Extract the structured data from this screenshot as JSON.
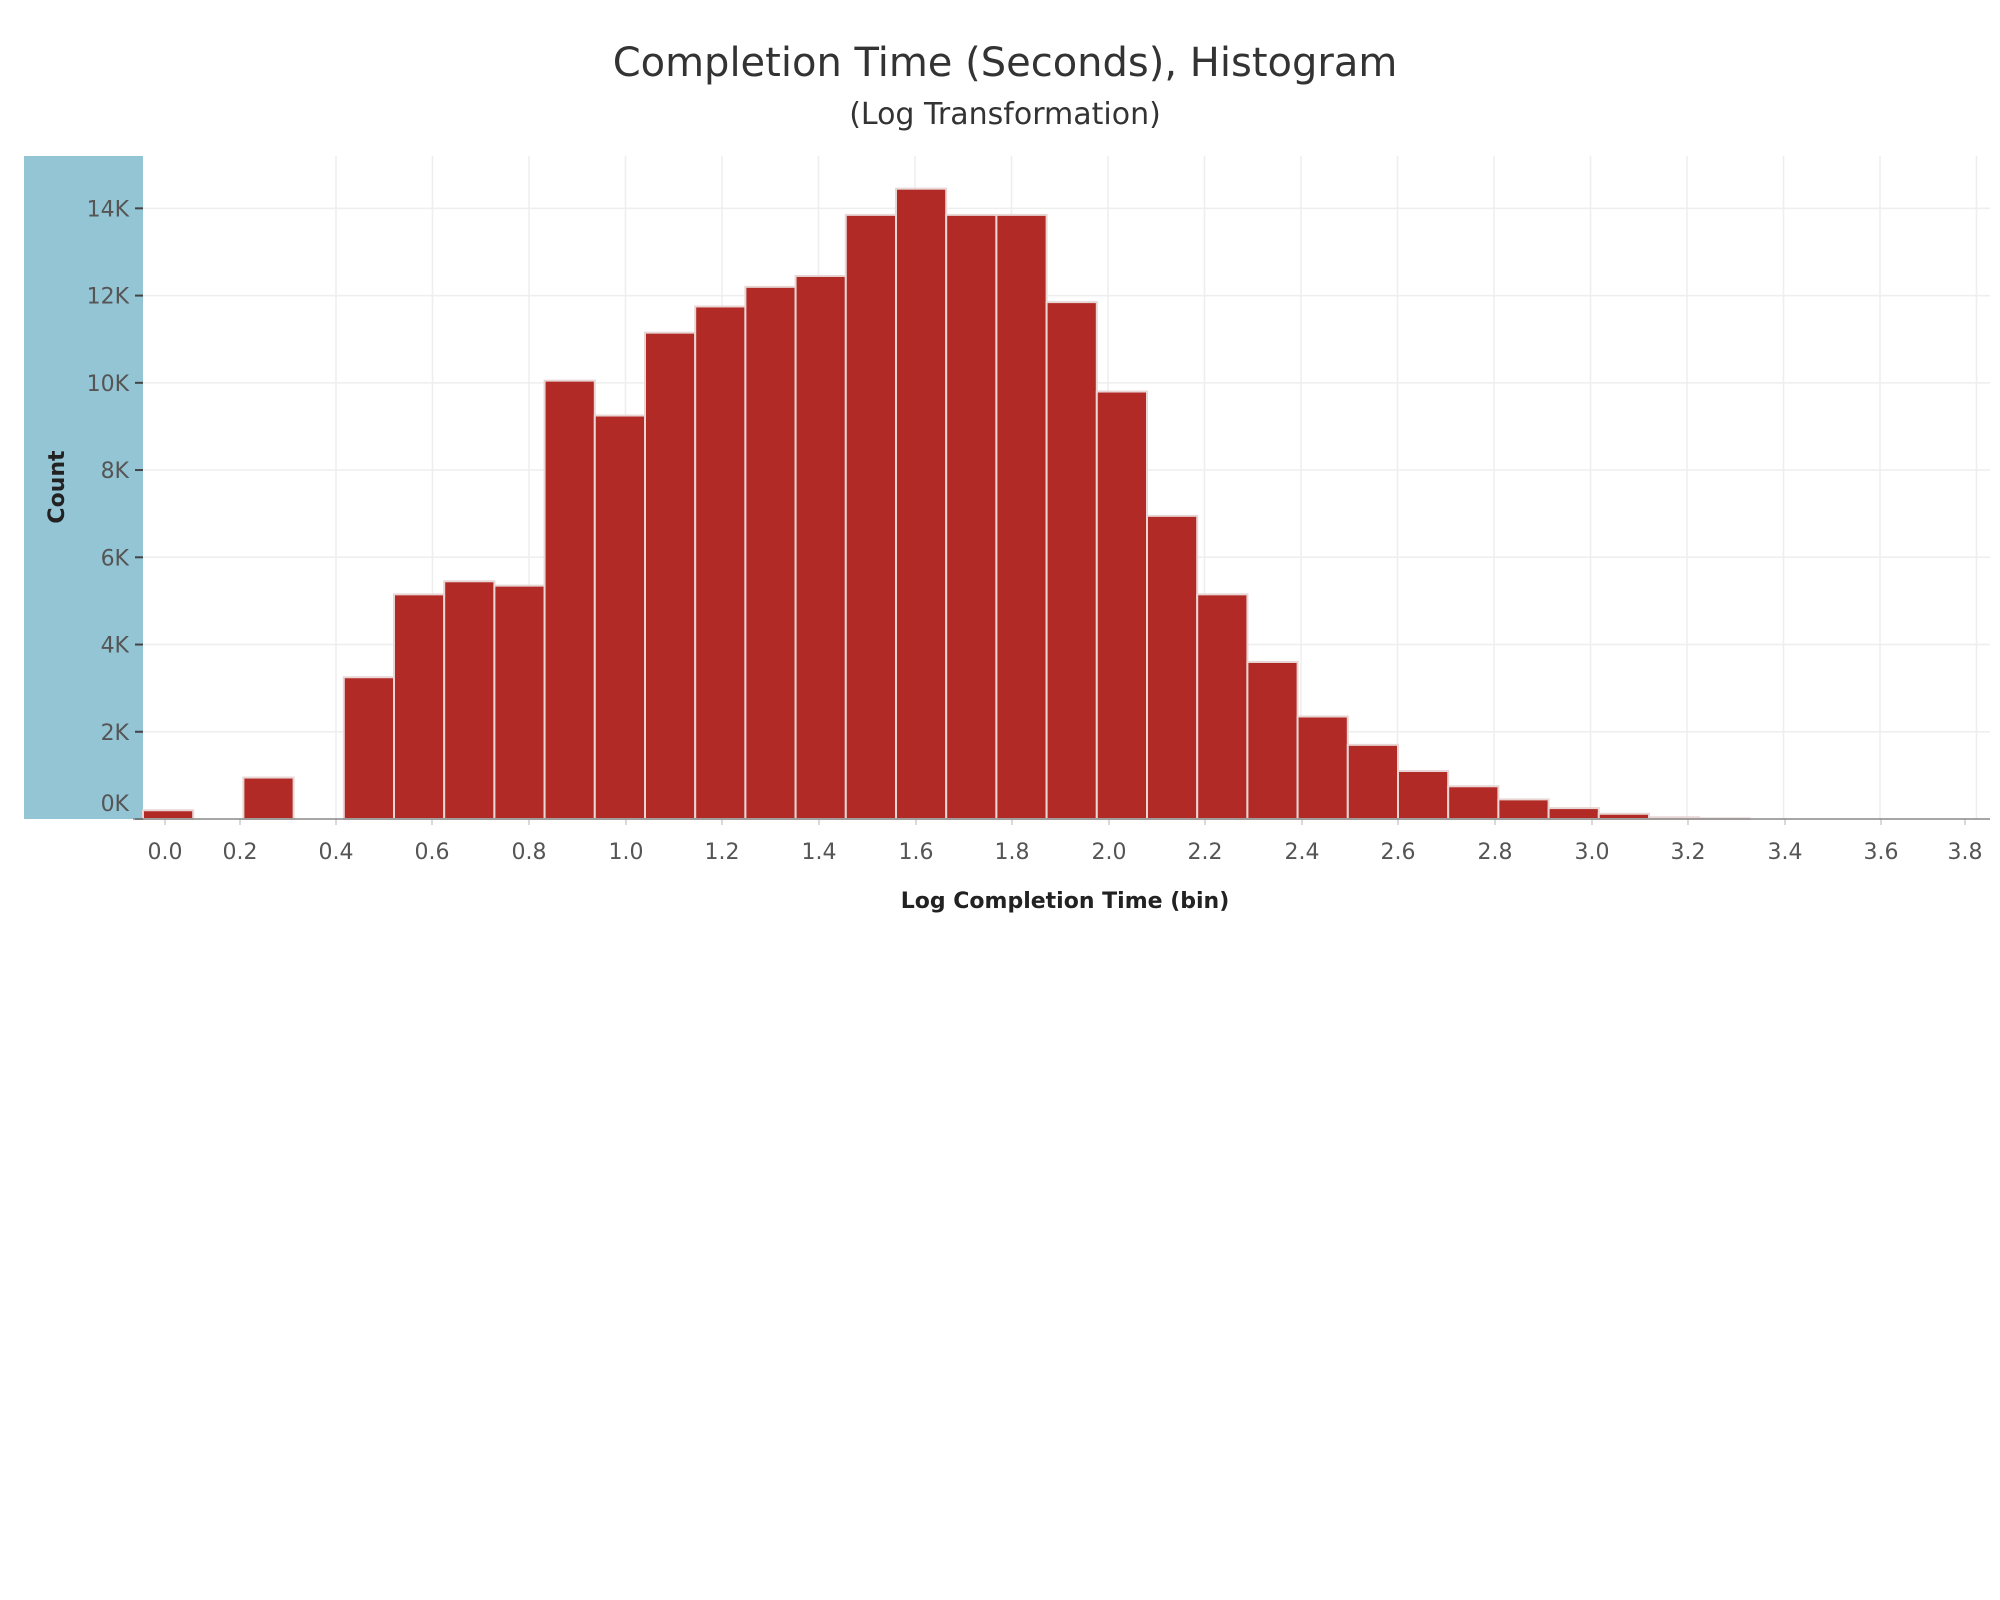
{
  "chart_data": {
    "type": "bar",
    "title": "Completion Time (Seconds), Histogram",
    "subtitle": "(Log Transformation)",
    "xlabel": "Log Completion Time (bin)",
    "ylabel": "Count",
    "bin_width": 0.1,
    "x_tick_labels": [
      "0.0",
      "0.2",
      "0.4",
      "0.6",
      "0.8",
      "1.0",
      "1.2",
      "1.4",
      "1.6",
      "1.8",
      "2.0",
      "2.2",
      "2.4",
      "2.6",
      "2.8",
      "3.0",
      "3.2",
      "3.4",
      "3.6",
      "3.8"
    ],
    "y_ticks": [
      0,
      2000,
      4000,
      6000,
      8000,
      10000,
      12000,
      14000
    ],
    "y_tick_labels": [
      "0K",
      "2K",
      "4K",
      "6K",
      "8K",
      "10K",
      "12K",
      "14K"
    ],
    "ylim": [
      0,
      15200
    ],
    "bins": [
      0.0,
      0.2,
      0.4,
      0.5,
      0.6,
      0.7,
      0.8,
      0.9,
      1.0,
      1.1,
      1.2,
      1.3,
      1.4,
      1.5,
      1.6,
      1.7,
      1.8,
      1.9,
      2.0,
      2.1,
      2.2,
      2.3,
      2.4,
      2.5,
      2.6,
      2.7,
      2.8,
      2.9,
      3.0,
      3.1
    ],
    "values": [
      200,
      950,
      3250,
      5150,
      5450,
      5350,
      10050,
      9250,
      11150,
      11750,
      12200,
      12450,
      13850,
      14450,
      13850,
      13850,
      11850,
      9800,
      6950,
      5150,
      3600,
      2350,
      1700,
      1100,
      750,
      450,
      250,
      120,
      40,
      15
    ],
    "grid": true,
    "colors": {
      "bar": "#b22a25",
      "bar_edge": "#e8d6d5",
      "y_axis_band": "#93c5d5",
      "grid": "#eeeeee"
    }
  }
}
